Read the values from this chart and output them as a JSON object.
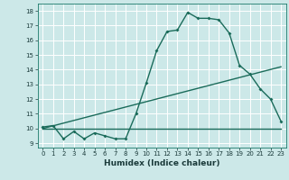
{
  "title": "",
  "xlabel": "Humidex (Indice chaleur)",
  "ylabel": "",
  "background_color": "#cce8e8",
  "grid_color": "#ffffff",
  "line_color": "#1a6b5a",
  "x_ticks": [
    0,
    1,
    2,
    3,
    4,
    5,
    6,
    7,
    8,
    9,
    10,
    11,
    12,
    13,
    14,
    15,
    16,
    17,
    18,
    19,
    20,
    21,
    22,
    23
  ],
  "y_ticks": [
    9,
    10,
    11,
    12,
    13,
    14,
    15,
    16,
    17,
    18
  ],
  "xlim": [
    -0.5,
    23.5
  ],
  "ylim": [
    8.7,
    18.5
  ],
  "series1_x": [
    0,
    1,
    2,
    3,
    4,
    5,
    6,
    7,
    8,
    9,
    10,
    11,
    12,
    13,
    14,
    15,
    16,
    17,
    18,
    19,
    20,
    21,
    22,
    23
  ],
  "series1_y": [
    10.1,
    10.2,
    9.3,
    9.8,
    9.3,
    9.7,
    9.5,
    9.3,
    9.3,
    11.0,
    13.1,
    15.3,
    16.6,
    16.7,
    17.9,
    17.5,
    17.5,
    17.4,
    16.5,
    14.3,
    13.7,
    12.7,
    12.0,
    10.5
  ],
  "series2_x": [
    0,
    23
  ],
  "series2_y": [
    10.0,
    14.2
  ],
  "series3_x": [
    0,
    23
  ],
  "series3_y": [
    10.0,
    10.0
  ],
  "marker": "D",
  "marker_size": 2.0,
  "line_width": 1.0,
  "xlabel_fontsize": 6.5,
  "tick_fontsize": 5.0
}
